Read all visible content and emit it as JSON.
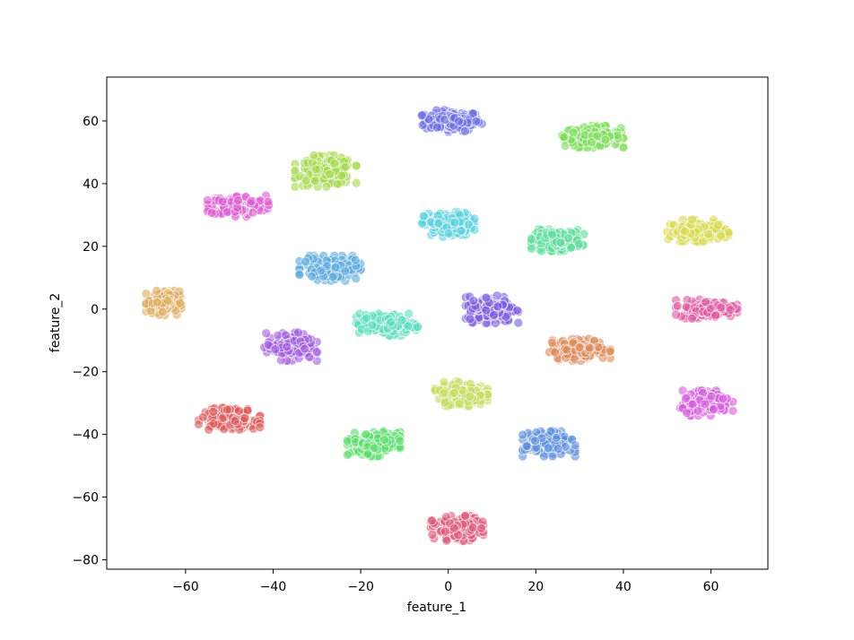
{
  "chart_data": {
    "type": "scatter",
    "title": "",
    "xlabel": "feature_1",
    "ylabel": "feature_2",
    "xlim": [
      -78,
      73
    ],
    "ylim": [
      -83,
      74
    ],
    "xticks": [
      -60,
      -40,
      -20,
      0,
      20,
      40,
      60
    ],
    "yticks": [
      60,
      40,
      20,
      0,
      -20,
      -40,
      -60,
      -80
    ],
    "xtick_labels": [
      "−60",
      "−40",
      "−20",
      "0",
      "20",
      "40",
      "60"
    ],
    "ytick_labels": [
      "60",
      "40",
      "20",
      "0",
      "−20",
      "−40",
      "−60",
      "−80"
    ],
    "grid": false,
    "legend": "none",
    "point_alpha": 0.6,
    "clusters": [
      {
        "color": "#6a6ee0",
        "center": [
          1,
          60
        ],
        "spread": [
          7,
          3.5
        ]
      },
      {
        "color": "#7ddc5c",
        "center": [
          33,
          55
        ],
        "spread": [
          7,
          3.5
        ]
      },
      {
        "color": "#a3d94c",
        "center": [
          -28,
          44
        ],
        "spread": [
          7,
          5
        ]
      },
      {
        "color": "#dc5ad0",
        "center": [
          -48,
          33
        ],
        "spread": [
          7,
          3.5
        ]
      },
      {
        "color": "#5ad0dc",
        "center": [
          0,
          27
        ],
        "spread": [
          6,
          4
        ]
      },
      {
        "color": "#5cdc9a",
        "center": [
          25,
          22
        ],
        "spread": [
          6,
          3.5
        ]
      },
      {
        "color": "#d8d94e",
        "center": [
          57,
          25
        ],
        "spread": [
          7,
          3.5
        ]
      },
      {
        "color": "#5aa8dc",
        "center": [
          -27,
          13
        ],
        "spread": [
          7,
          4
        ]
      },
      {
        "color": "#dcaa5a",
        "center": [
          -65,
          2
        ],
        "spread": [
          4,
          4
        ]
      },
      {
        "color": "#7c5cdc",
        "center": [
          10,
          0
        ],
        "spread": [
          6,
          4.5
        ]
      },
      {
        "color": "#dc5aa0",
        "center": [
          59,
          0
        ],
        "spread": [
          7,
          3
        ]
      },
      {
        "color": "#5adcbe",
        "center": [
          -14,
          -5
        ],
        "spread": [
          7,
          3.5
        ]
      },
      {
        "color": "#a05cdc",
        "center": [
          -36,
          -12
        ],
        "spread": [
          6,
          4.5
        ]
      },
      {
        "color": "#dc8a5a",
        "center": [
          30,
          -13
        ],
        "spread": [
          7,
          3.5
        ]
      },
      {
        "color": "#c2dc5a",
        "center": [
          3,
          -27
        ],
        "spread": [
          6,
          4
        ]
      },
      {
        "color": "#d45cdc",
        "center": [
          59,
          -30
        ],
        "spread": [
          6,
          4
        ]
      },
      {
        "color": "#dc5a5a",
        "center": [
          -50,
          -35
        ],
        "spread": [
          7,
          3.5
        ]
      },
      {
        "color": "#5adc6a",
        "center": [
          -17,
          -43
        ],
        "spread": [
          6,
          4
        ]
      },
      {
        "color": "#5a8edc",
        "center": [
          23,
          -43
        ],
        "spread": [
          6,
          4
        ]
      },
      {
        "color": "#dc5a7a",
        "center": [
          2,
          -70
        ],
        "spread": [
          6,
          4
        ]
      }
    ]
  }
}
